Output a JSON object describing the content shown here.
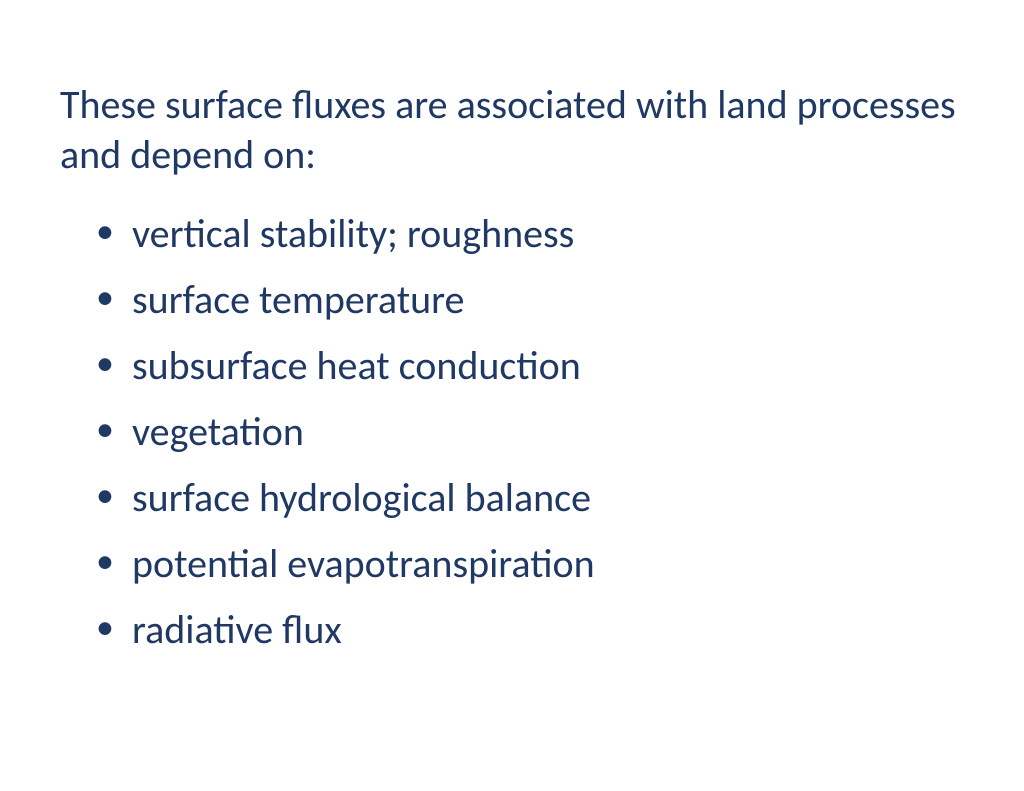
{
  "slide": {
    "heading": "These surface fluxes are associated with land processes and depend on:",
    "bullets": [
      "vertical stability; roughness",
      "surface temperature",
      "subsurface heat conduction",
      "vegetation",
      "surface hydrological balance",
      "potential evapotranspiration",
      "radiative flux"
    ],
    "text_color": "#1f3864",
    "background_color": "#ffffff",
    "heading_fontsize": 40,
    "bullet_fontsize": 40
  }
}
